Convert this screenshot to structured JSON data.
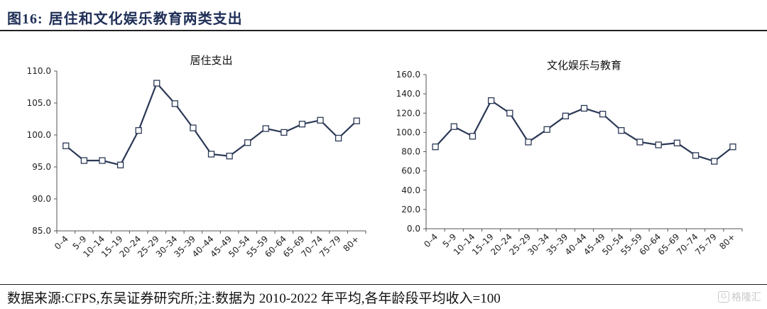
{
  "figure": {
    "label": "图16:",
    "title": "居住和文化娱乐教育两类支出"
  },
  "footer": {
    "source": "数据来源:CFPS,东吴证券研究所;注:数据为 2010-2022 年平均,各年龄段平均收入=100",
    "watermark": "格隆汇"
  },
  "colors": {
    "line": "#2b3856",
    "marker_fill": "#ffffff",
    "axis": "#555555"
  },
  "chart_data": [
    {
      "type": "line",
      "title": "居住支出",
      "categories": [
        "0–4",
        "5–9",
        "10–14",
        "15–19",
        "20–24",
        "25–29",
        "30–34",
        "35–39",
        "40–44",
        "45–49",
        "50–54",
        "55–59",
        "60–64",
        "65–69",
        "70–74",
        "75–79",
        "80+"
      ],
      "values": [
        98.3,
        96.0,
        96.0,
        95.3,
        100.7,
        108.1,
        104.9,
        101.1,
        97.0,
        96.7,
        98.8,
        101.0,
        100.4,
        101.7,
        102.3,
        99.5,
        102.2
      ],
      "ylim": [
        85,
        110
      ],
      "yticks": [
        "85.0",
        "90.0",
        "95.0",
        "100.0",
        "105.0",
        "110.0"
      ],
      "grid": false,
      "marker": "square"
    },
    {
      "type": "line",
      "title": "文化娱乐与教育",
      "categories": [
        "0–4",
        "5–9",
        "10–14",
        "15–19",
        "20–24",
        "25–29",
        "30–34",
        "35–39",
        "40–44",
        "45–49",
        "50–54",
        "55–59",
        "60–64",
        "65–69",
        "70–74",
        "75–79",
        "80+"
      ],
      "values": [
        85,
        106,
        96,
        133,
        120,
        90,
        103,
        117,
        125,
        119,
        102,
        90,
        87,
        89,
        76,
        70,
        85
      ],
      "ylim": [
        0,
        160
      ],
      "yticks": [
        "0.0",
        "20.0",
        "40.0",
        "60.0",
        "80.0",
        "100.0",
        "120.0",
        "140.0",
        "160.0"
      ],
      "grid": false,
      "marker": "square"
    }
  ]
}
